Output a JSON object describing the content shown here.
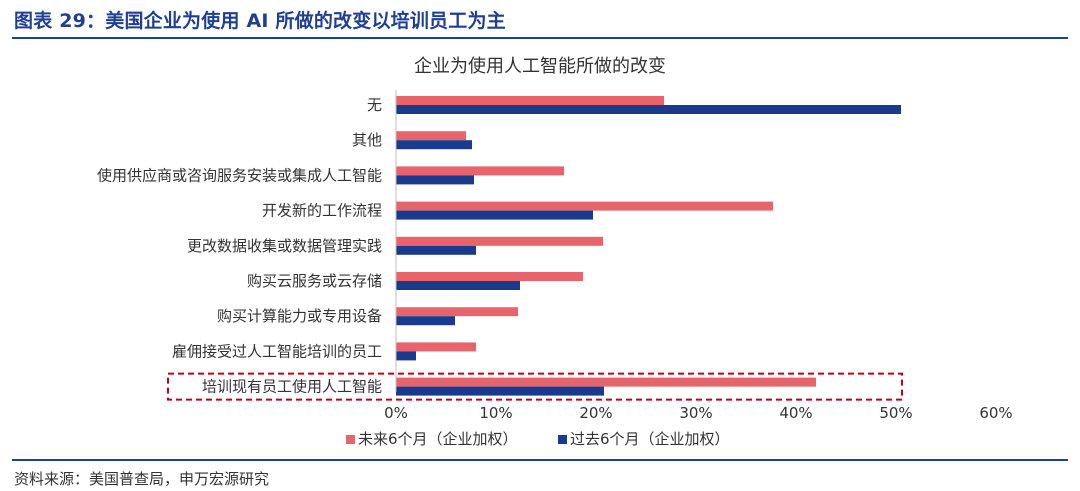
{
  "figure": {
    "title": "图表 29：美国企业为使用 AI 所做的改变以培训员工为主",
    "source": "资料来源：美国普查局，申万宏源研究"
  },
  "colors": {
    "brand": "#1f3f94",
    "future_series": "#e8646a",
    "past_series": "#1a3a8e",
    "highlight_box": "#c0001a"
  },
  "chart_data": {
    "type": "bar",
    "orientation": "horizontal",
    "title": "企业为使用人工智能所做的改变",
    "categories": [
      "无",
      "其他",
      "使用供应商或咨询服务安装或集成人工智能",
      "开发新的工作流程",
      "更改数据收集或数据管理实践",
      "购买云服务或云存储",
      "购买计算能力或专用设备",
      "雇佣接受过人工智能培训的员工",
      "培训现有员工使用人工智能"
    ],
    "series": [
      {
        "name": "未来6个月（企业加权）",
        "values": [
          26.8,
          7.0,
          16.8,
          37.7,
          20.7,
          18.7,
          12.2,
          8.0,
          42.0
        ]
      },
      {
        "name": "过去6个月（企业加权）",
        "values": [
          50.5,
          7.6,
          7.8,
          19.7,
          8.0,
          12.4,
          5.9,
          2.0,
          20.8
        ]
      }
    ],
    "xlim": [
      0,
      60
    ],
    "xticks": [
      "0%",
      "10%",
      "20%",
      "30%",
      "40%",
      "50%",
      "60%"
    ],
    "xlabel": "",
    "ylabel": "",
    "grid": false,
    "legend_position": "bottom",
    "highlighted_category": "培训现有员工使用人工智能"
  }
}
